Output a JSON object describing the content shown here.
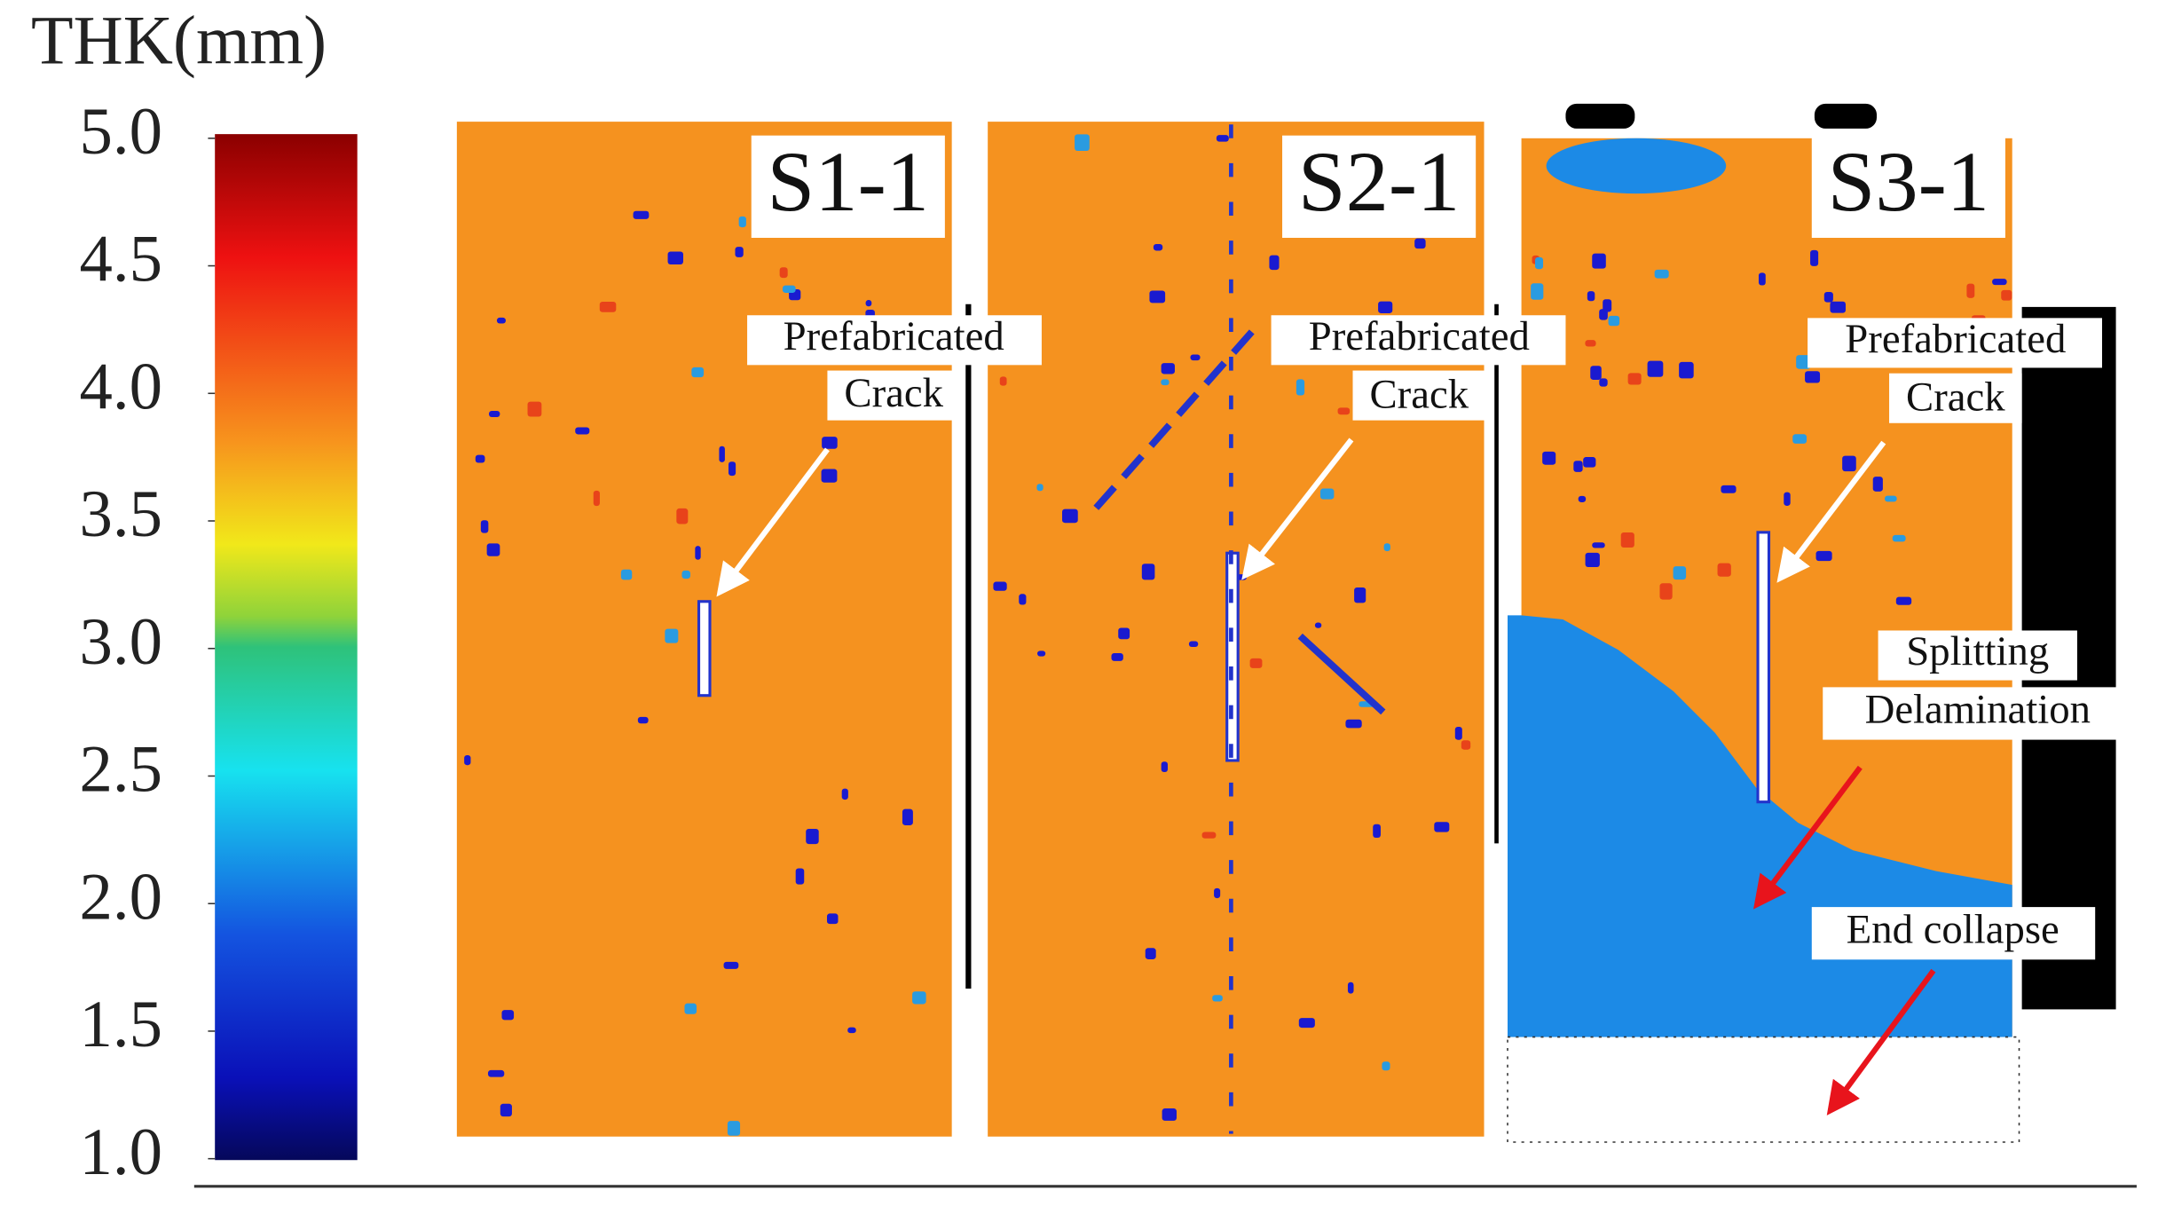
{
  "colorbar": {
    "title": "THK(mm)",
    "ticks": [
      {
        "value": 5,
        "label": "5.0"
      },
      {
        "value": 4.5,
        "label": "4.5"
      },
      {
        "value": 4,
        "label": "4.0"
      },
      {
        "value": 3.5,
        "label": "3.5"
      },
      {
        "value": 3,
        "label": "3.0"
      },
      {
        "value": 2.5,
        "label": "2.5"
      },
      {
        "value": 2,
        "label": "2.0"
      },
      {
        "value": 1.5,
        "label": "1.5"
      },
      {
        "value": 1,
        "label": "1.0"
      }
    ]
  },
  "panels": [
    {
      "label": "S1-1",
      "crack_note": [
        "Prefabricated",
        "Crack"
      ]
    },
    {
      "label": "S2-1",
      "crack_note": [
        "Prefabricated",
        "Crack"
      ]
    },
    {
      "label": "S3-1",
      "crack_note": [
        "Prefabricated",
        "Crack"
      ],
      "splitting_note": [
        "Splitting",
        "Delamination"
      ],
      "collapse_note": "End collapse"
    }
  ]
}
